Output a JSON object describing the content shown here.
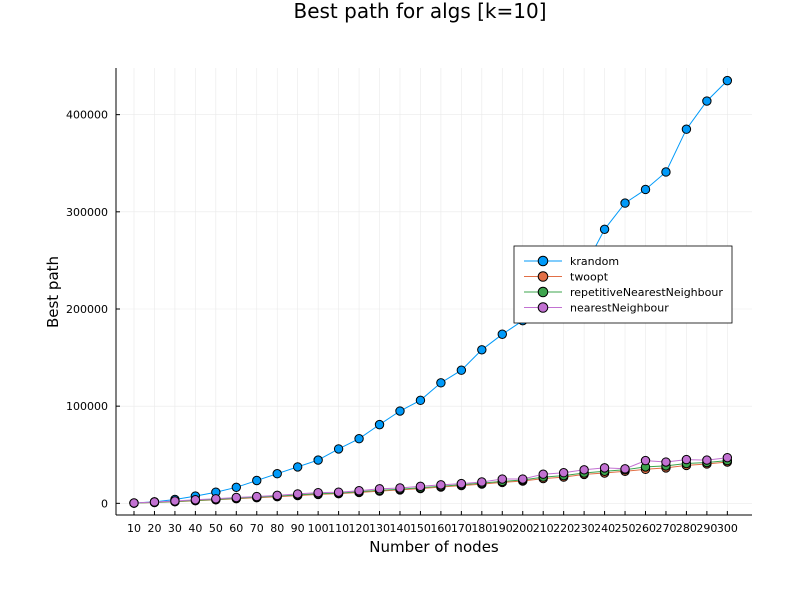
{
  "chart_data": {
    "type": "line",
    "title": "Best path for algs [k=10]",
    "xlabel": "Number of nodes",
    "ylabel": "Best path",
    "categories": [
      "10",
      "20",
      "30",
      "40",
      "50",
      "60",
      "70",
      "80",
      "90",
      "100",
      "110",
      "120",
      "130",
      "140",
      "150",
      "160",
      "170",
      "180",
      "190",
      "200",
      "210",
      "220",
      "230",
      "240",
      "250",
      "260",
      "270",
      "280",
      "290",
      "300"
    ],
    "y_ticks": [
      0,
      100000,
      200000,
      300000,
      400000
    ],
    "ylim": [
      -12000,
      448000
    ],
    "grid": true,
    "legend_position": "right",
    "series": [
      {
        "name": "krandom",
        "color": "#009af9",
        "values": [
          300,
          1500,
          4000,
          7500,
          11500,
          16500,
          23500,
          30500,
          37500,
          44500,
          56000,
          66500,
          81000,
          95000,
          106000,
          124000,
          137000,
          158000,
          174000,
          188000,
          200000,
          215000,
          242000,
          282000,
          309000,
          323000,
          341000,
          385000,
          414000,
          435000
        ]
      },
      {
        "name": "twoopt",
        "color": "#e26f46",
        "values": [
          250,
          900,
          1700,
          2700,
          3700,
          4800,
          5800,
          6800,
          8000,
          9200,
          10000,
          11200,
          12600,
          13800,
          15200,
          16800,
          18300,
          19800,
          21500,
          23000,
          25500,
          27000,
          29800,
          31200,
          33000,
          35000,
          36500,
          39000,
          40500,
          42500
        ]
      },
      {
        "name": "repetitiveNearestNeighbour",
        "color": "#3da44d",
        "values": [
          280,
          1000,
          1900,
          3000,
          4000,
          5200,
          6300,
          7400,
          8700,
          9900,
          10500,
          12000,
          13400,
          14600,
          16000,
          17600,
          19200,
          20800,
          22600,
          24000,
          27000,
          28500,
          31200,
          33000,
          34500,
          37500,
          38500,
          41000,
          42000,
          44000
        ]
      },
      {
        "name": "nearestNeighbour",
        "color": "#c271d2",
        "values": [
          350,
          1400,
          2400,
          3700,
          4700,
          6000,
          7000,
          8200,
          9700,
          11000,
          11500,
          13000,
          15000,
          15800,
          17500,
          19000,
          20300,
          22000,
          25000,
          25000,
          30000,
          31500,
          34500,
          36500,
          35500,
          44000,
          42500,
          45000,
          44500,
          47000
        ]
      }
    ]
  }
}
